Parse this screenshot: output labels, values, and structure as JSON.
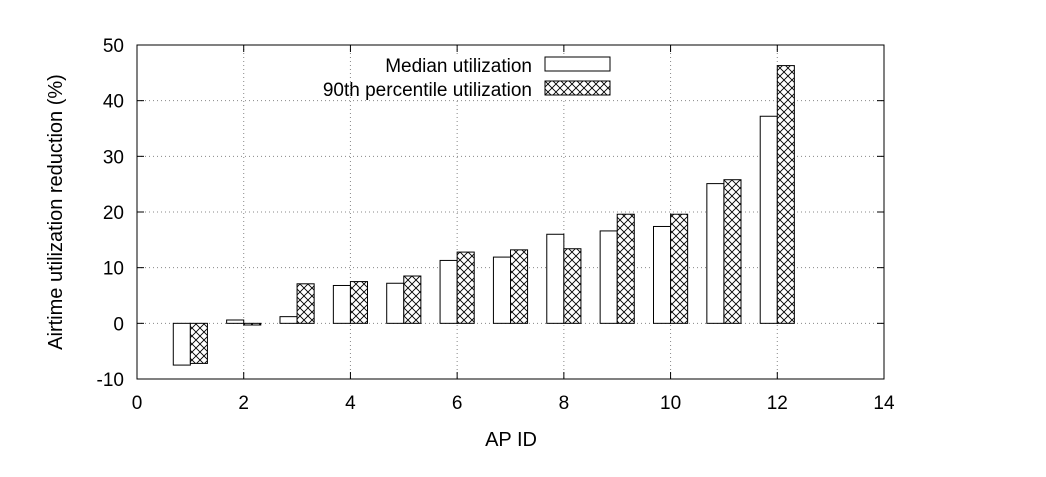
{
  "chart_data": {
    "type": "bar",
    "title": "",
    "xlabel": "AP ID",
    "ylabel": "Airtime utilization reduction (%)",
    "xlim": [
      0,
      14
    ],
    "ylim": [
      -10,
      50
    ],
    "xticks": [
      0,
      2,
      4,
      6,
      8,
      10,
      12,
      14
    ],
    "yticks": [
      -10,
      0,
      10,
      20,
      30,
      40,
      50
    ],
    "grid": true,
    "legend_position": "top",
    "x": [
      1,
      2,
      3,
      4,
      5,
      6,
      7,
      8,
      9,
      10,
      11,
      12
    ],
    "series": [
      {
        "name": "Median utilization",
        "pattern": "empty",
        "values": [
          -7.5,
          0.6,
          1.2,
          6.8,
          7.2,
          11.3,
          11.9,
          16.0,
          16.6,
          17.4,
          25.1,
          37.2
        ]
      },
      {
        "name": "90th percentile utilization",
        "pattern": "crosshatch",
        "values": [
          -7.2,
          -0.3,
          7.1,
          7.5,
          8.5,
          12.8,
          13.2,
          13.4,
          19.6,
          19.6,
          25.8,
          46.3
        ]
      }
    ],
    "colors": {
      "bar_stroke": "#000000",
      "bar_fill": "#ffffff",
      "grid": "#888888",
      "axis": "#000000"
    }
  }
}
